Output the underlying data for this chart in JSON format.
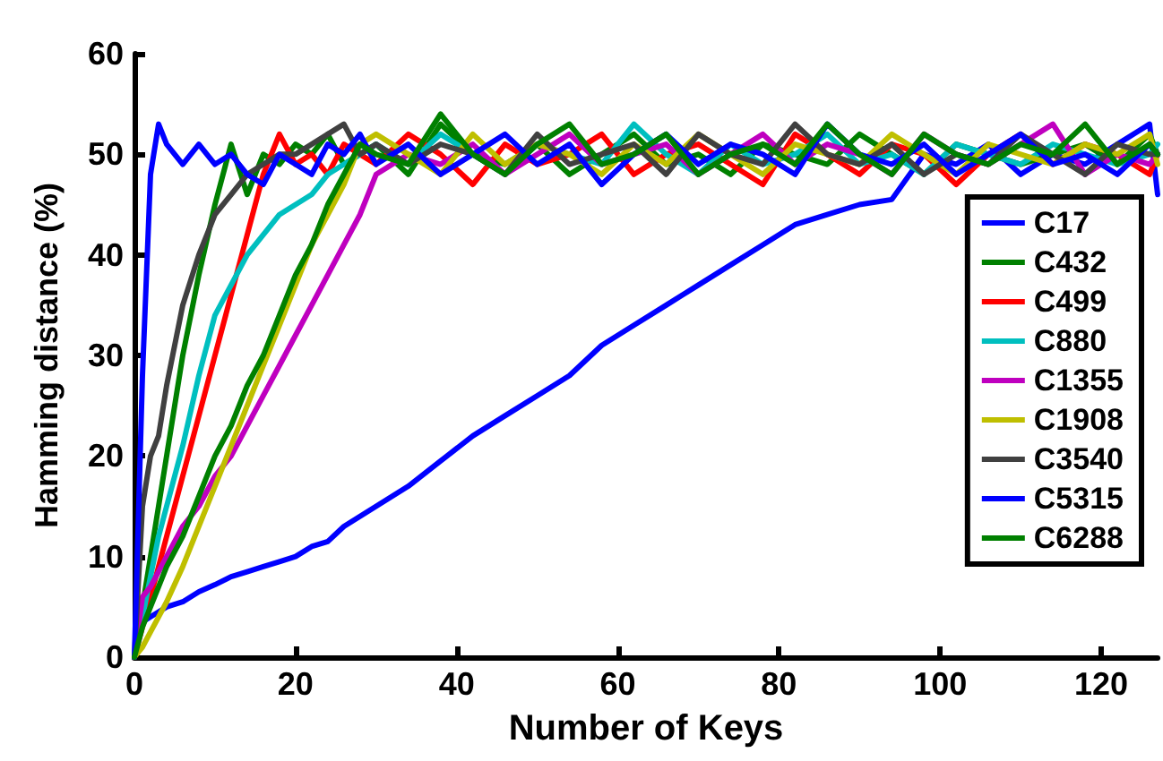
{
  "chart_data": {
    "type": "line",
    "xlabel": "Number of Keys",
    "ylabel": "Hamming distance (%)",
    "x": [
      0,
      1,
      2,
      3,
      4,
      6,
      8,
      10,
      12,
      14,
      16,
      18,
      20,
      22,
      24,
      26,
      28,
      30,
      34,
      38,
      42,
      46,
      50,
      54,
      58,
      62,
      66,
      70,
      74,
      78,
      82,
      86,
      90,
      94,
      98,
      102,
      106,
      110,
      114,
      118,
      122,
      126,
      127
    ],
    "series": [
      {
        "name": "C17",
        "color": "#0000ff",
        "values": [
          0,
          3.5,
          4,
          4.5,
          5,
          5.5,
          6.5,
          7.2,
          8,
          8.5,
          9,
          9.5,
          10,
          11,
          11.5,
          13,
          14,
          15,
          17,
          19.5,
          22,
          24,
          26,
          28,
          31,
          33,
          35,
          37,
          39,
          41,
          43,
          44,
          45,
          45.5,
          50,
          49,
          51,
          48,
          50,
          49,
          51,
          53,
          46
        ]
      },
      {
        "name": "C432",
        "color": "#008000",
        "values": [
          0,
          5,
          10,
          15,
          20,
          30,
          38,
          45,
          51,
          46,
          50,
          49,
          51,
          50,
          52,
          49,
          50,
          51,
          48,
          53,
          50,
          49,
          51,
          48,
          50,
          52,
          49,
          50,
          48,
          51,
          50,
          49,
          52,
          50,
          48,
          51,
          50,
          49,
          50,
          51,
          49,
          52,
          50
        ]
      },
      {
        "name": "C499",
        "color": "#ff0000",
        "values": [
          0,
          3,
          6,
          9,
          12,
          18,
          24,
          30,
          36,
          42,
          48,
          52,
          49,
          50,
          48,
          51,
          50,
          49,
          52,
          50,
          47,
          51,
          49,
          50,
          52,
          48,
          50,
          51,
          49,
          47,
          52,
          50,
          48,
          51,
          50,
          47,
          50,
          52,
          49,
          51,
          50,
          48,
          50
        ]
      },
      {
        "name": "C880",
        "color": "#00bfbf",
        "values": [
          0,
          4,
          8,
          12,
          15,
          21,
          28,
          34,
          37,
          40,
          42,
          44,
          45,
          46,
          48,
          49,
          50,
          51,
          49,
          52,
          50,
          48,
          51,
          50,
          49,
          53,
          50,
          48,
          51,
          49,
          50,
          52,
          49,
          50,
          48,
          51,
          50,
          49,
          51,
          50,
          49,
          50,
          51
        ]
      },
      {
        "name": "C1355",
        "color": "#bf00bf",
        "values": [
          0,
          6,
          7,
          8.5,
          10,
          13,
          15,
          18,
          20,
          23,
          26,
          29,
          32,
          35,
          38,
          41,
          44,
          48,
          50,
          49,
          51,
          48,
          50,
          52,
          49,
          50,
          51,
          48,
          50,
          52,
          49,
          51,
          50,
          48,
          52,
          50,
          49,
          51,
          53,
          48,
          50,
          49,
          50
        ]
      },
      {
        "name": "C1908",
        "color": "#bfbf00",
        "values": [
          0,
          1,
          2.5,
          4,
          5.5,
          9,
          13,
          17,
          21,
          25,
          29,
          33,
          37,
          41,
          44,
          47,
          51,
          52,
          50,
          48,
          52,
          49,
          51,
          50,
          48,
          51,
          49,
          52,
          50,
          48,
          51,
          50,
          49,
          52,
          50,
          48,
          51,
          50,
          49,
          51,
          50,
          52,
          49
        ]
      },
      {
        "name": "C3540",
        "color": "#404040",
        "values": [
          0,
          15,
          20,
          22,
          27,
          35,
          40,
          44,
          46,
          48,
          49,
          50,
          50,
          51,
          52,
          53,
          50,
          51,
          49,
          51,
          50,
          48,
          52,
          49,
          50,
          51,
          48,
          52,
          50,
          49,
          53,
          50,
          49,
          51,
          48,
          50,
          49,
          52,
          50,
          48,
          51,
          50,
          50
        ]
      },
      {
        "name": "C5315",
        "color": "#0000ff",
        "values": [
          0,
          28,
          48,
          53,
          51,
          49,
          51,
          49,
          50,
          48,
          47,
          50,
          49,
          48,
          51,
          50,
          52,
          49,
          51,
          48,
          50,
          52,
          49,
          51,
          47,
          50,
          52,
          49,
          51,
          50,
          48,
          53,
          50,
          49,
          51,
          48,
          50,
          52,
          49,
          50,
          48,
          51,
          50
        ]
      },
      {
        "name": "C6288",
        "color": "#008000",
        "values": [
          0,
          3,
          5,
          7,
          9,
          12,
          16,
          20,
          23,
          27,
          30,
          34,
          38,
          41,
          45,
          48,
          51,
          50,
          49,
          54,
          50,
          48,
          51,
          53,
          49,
          50,
          52,
          48,
          50,
          51,
          49,
          53,
          50,
          48,
          52,
          50,
          49,
          51,
          50,
          53,
          49,
          51,
          50
        ]
      }
    ],
    "xlim": [
      0,
      127
    ],
    "xticks": [
      0,
      20,
      40,
      60,
      80,
      100,
      120
    ],
    "ylim": [
      0,
      60
    ],
    "yticks": [
      0,
      10,
      20,
      30,
      40,
      50,
      60
    ],
    "grid": false,
    "legend": "right",
    "marker": "none",
    "line_style": "solid"
  }
}
